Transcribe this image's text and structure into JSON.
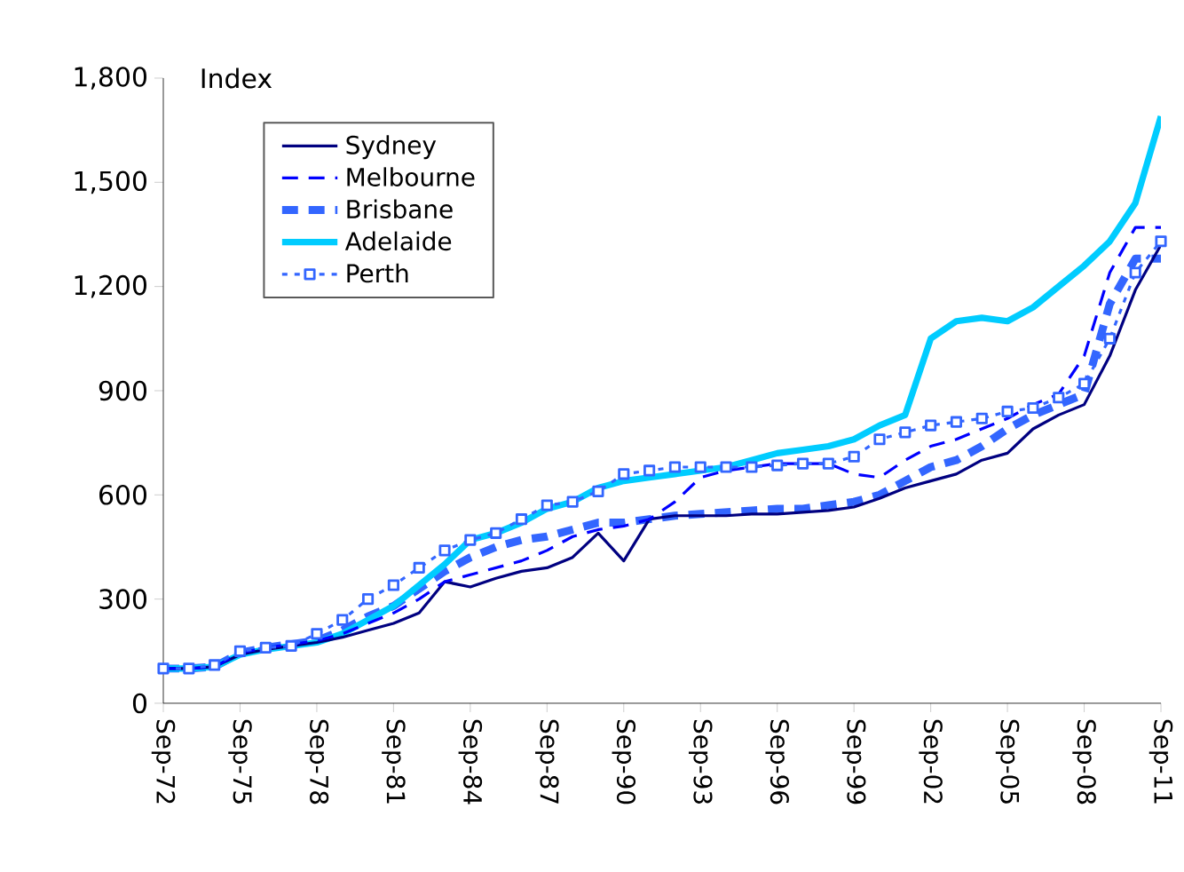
{
  "chart_data": {
    "type": "line",
    "ylabel": "Index",
    "x": [
      "1972-09",
      "1973-09",
      "1974-09",
      "1975-09",
      "1976-09",
      "1977-09",
      "1978-09",
      "1979-09",
      "1980-09",
      "1981-09",
      "1982-09",
      "1983-09",
      "1984-09",
      "1985-09",
      "1986-09",
      "1987-09",
      "1988-09",
      "1989-09",
      "1990-09",
      "1991-09",
      "1992-09",
      "1993-09",
      "1994-09",
      "1995-09",
      "1996-09",
      "1997-09",
      "1998-09",
      "1999-09",
      "2000-09",
      "2001-09",
      "2002-09",
      "2003-09",
      "2004-09",
      "2005-09",
      "2006-09",
      "2007-09",
      "2008-09",
      "2009-09",
      "2010-09",
      "2011-09"
    ],
    "series": [
      {
        "name": "Sydney",
        "color": "#000080",
        "line_style": "solid",
        "values": [
          100,
          100,
          105,
          140,
          155,
          165,
          175,
          190,
          210,
          230,
          260,
          350,
          335,
          360,
          380,
          390,
          420,
          490,
          410,
          530,
          540,
          540,
          540,
          545,
          545,
          550,
          555,
          565,
          590,
          620,
          640,
          660,
          700,
          720,
          790,
          830,
          860,
          1000,
          1190,
          1320
        ]
      },
      {
        "name": "Melbourne",
        "color": "#0000ff",
        "line_style": "dashed",
        "values": [
          100,
          100,
          105,
          145,
          160,
          170,
          180,
          200,
          230,
          260,
          300,
          350,
          370,
          390,
          410,
          440,
          480,
          500,
          510,
          530,
          580,
          650,
          670,
          680,
          690,
          690,
          690,
          660,
          650,
          700,
          740,
          760,
          790,
          820,
          860,
          890,
          1000,
          1240,
          1370,
          1370
        ]
      },
      {
        "name": "Brisbane",
        "color": "#3366ff",
        "line_style": "dashed",
        "values": [
          100,
          100,
          105,
          145,
          160,
          170,
          180,
          210,
          250,
          280,
          330,
          380,
          420,
          450,
          470,
          480,
          500,
          520,
          520,
          530,
          540,
          545,
          550,
          555,
          560,
          560,
          570,
          580,
          600,
          640,
          680,
          700,
          740,
          790,
          830,
          860,
          890,
          1150,
          1280,
          1280
        ]
      },
      {
        "name": "Adelaide",
        "color": "#00ccff",
        "line_style": "solid",
        "values": [
          100,
          100,
          105,
          140,
          155,
          165,
          175,
          200,
          240,
          280,
          340,
          400,
          470,
          490,
          520,
          560,
          580,
          620,
          640,
          650,
          660,
          670,
          680,
          700,
          720,
          730,
          740,
          760,
          800,
          830,
          1050,
          1100,
          1110,
          1100,
          1140,
          1200,
          1260,
          1330,
          1440,
          1690
        ]
      },
      {
        "name": "Perth",
        "color": "#3366ff",
        "line_style": "dotted",
        "marker": "square",
        "values": [
          100,
          100,
          110,
          150,
          160,
          165,
          200,
          240,
          300,
          340,
          390,
          440,
          470,
          490,
          530,
          570,
          580,
          610,
          660,
          670,
          680,
          680,
          680,
          680,
          685,
          690,
          690,
          710,
          760,
          780,
          800,
          810,
          820,
          840,
          850,
          880,
          920,
          1050,
          1240,
          1330
        ]
      }
    ],
    "xlim": [
      "1972-09",
      "2011-09"
    ],
    "xticks": [
      {
        "value": "1972-09",
        "label": "Sep-72"
      },
      {
        "value": "1975-09",
        "label": "Sep-75"
      },
      {
        "value": "1978-09",
        "label": "Sep-78"
      },
      {
        "value": "1981-09",
        "label": "Sep-81"
      },
      {
        "value": "1984-09",
        "label": "Sep-84"
      },
      {
        "value": "1987-09",
        "label": "Sep-87"
      },
      {
        "value": "1990-09",
        "label": "Sep-90"
      },
      {
        "value": "1993-09",
        "label": "Sep-93"
      },
      {
        "value": "1996-09",
        "label": "Sep-96"
      },
      {
        "value": "1999-09",
        "label": "Sep-99"
      },
      {
        "value": "2002-09",
        "label": "Sep-02"
      },
      {
        "value": "2005-09",
        "label": "Sep-05"
      },
      {
        "value": "2008-09",
        "label": "Sep-08"
      },
      {
        "value": "2011-09",
        "label": "Sep-11"
      }
    ],
    "ylim": [
      0,
      1800
    ],
    "yticks": [
      0,
      300,
      600,
      900,
      {
        "value": 1200,
        "label": "1,200"
      },
      {
        "value": 1500,
        "label": "1,500"
      },
      {
        "value": 1800,
        "label": "1,800"
      }
    ],
    "grid": false,
    "legend": "top left"
  }
}
